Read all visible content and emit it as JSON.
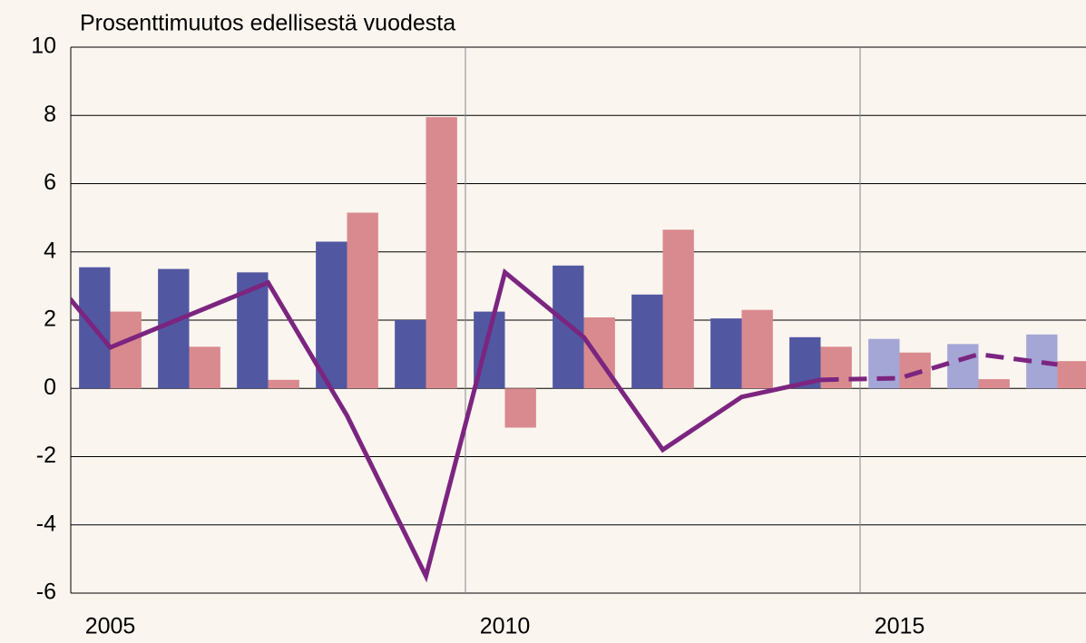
{
  "chart_data": {
    "type": "bar",
    "title": "Prosenttimuutos edellisestä vuodesta",
    "x": [
      2005,
      2006,
      2007,
      2008,
      2009,
      2010,
      2011,
      2012,
      2013,
      2014,
      2015,
      2016,
      2017
    ],
    "series": [
      {
        "type": "bar",
        "colors": [
          "#5257a2",
          "#5257a2",
          "#5257a2",
          "#5257a2",
          "#5257a2",
          "#5257a2",
          "#5257a2",
          "#5257a2",
          "#5257a2",
          "#5257a2",
          "#a4a6d6",
          "#a4a6d6",
          "#a4a6d6"
        ],
        "values": [
          3.55,
          3.5,
          3.4,
          4.3,
          2.0,
          2.25,
          3.6,
          2.75,
          2.05,
          1.5,
          1.45,
          1.3,
          1.58
        ]
      },
      {
        "type": "bar",
        "color": "#d98a8e",
        "values": [
          2.25,
          1.22,
          0.25,
          5.15,
          7.95,
          -1.15,
          2.08,
          4.65,
          2.3,
          1.22,
          1.05,
          0.27,
          0.8
        ]
      },
      {
        "type": "line",
        "color": "#7b2580",
        "dashed": false,
        "x": [
          2004,
          2005,
          2006,
          2007,
          2008,
          2009,
          2010,
          2011,
          2012,
          2013,
          2014
        ],
        "values": [
          4.0,
          1.2,
          2.15,
          3.1,
          -0.8,
          -5.5,
          3.4,
          1.5,
          -1.8,
          -0.25,
          0.25
        ]
      },
      {
        "type": "line",
        "color": "#7b2580",
        "dashed": true,
        "x": [
          2014,
          2015,
          2016,
          2017
        ],
        "values": [
          0.25,
          0.3,
          1.0,
          0.7
        ]
      }
    ],
    "xlim": [
      2005,
      2017.862
    ],
    "xticks": [
      2005,
      2010,
      2015
    ],
    "ylim": [
      -6,
      10
    ],
    "yticks": [
      -6,
      -4,
      -2,
      0,
      2,
      4,
      6,
      8,
      10
    ],
    "grid": true
  }
}
